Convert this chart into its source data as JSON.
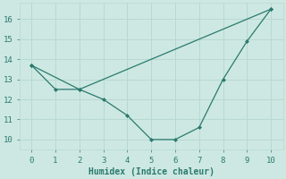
{
  "line1_x": [
    0,
    2,
    10
  ],
  "line1_y": [
    13.7,
    12.5,
    16.5
  ],
  "line2_x": [
    0,
    1,
    2,
    3,
    4,
    5,
    6,
    7,
    8,
    9,
    10
  ],
  "line2_y": [
    13.7,
    12.5,
    12.5,
    12.0,
    11.2,
    10.0,
    10.0,
    10.6,
    13.0,
    14.9,
    16.5
  ],
  "line_color": "#2a7a6f",
  "bg_color": "#cde8e2",
  "xlabel": "Humidex (Indice chaleur)",
  "ylim": [
    9.5,
    16.8
  ],
  "xlim": [
    -0.5,
    10.5
  ],
  "yticks": [
    10,
    11,
    12,
    13,
    14,
    15,
    16
  ],
  "xticks": [
    0,
    1,
    2,
    3,
    4,
    5,
    6,
    7,
    8,
    9,
    10
  ],
  "grid_color": "#b8d8d2",
  "font_color": "#2a7a6f",
  "tick_fontsize": 6.5,
  "xlabel_fontsize": 7.0,
  "marker": "D",
  "markersize": 2.5,
  "linewidth": 0.9
}
